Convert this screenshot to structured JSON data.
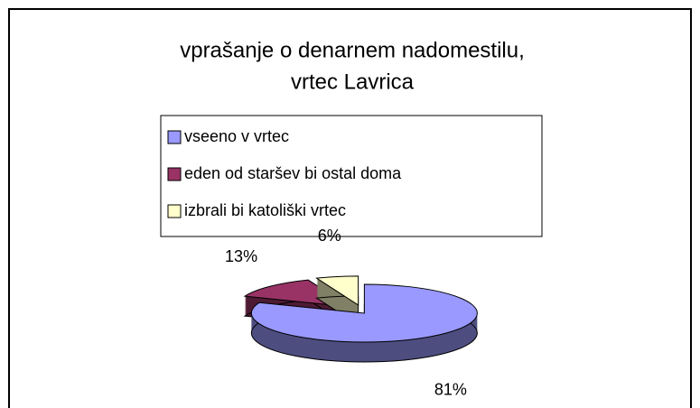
{
  "chart_data": {
    "type": "pie",
    "title": [
      "vprašanje o denarnem nadomestilu,",
      "vrtec Lavrica"
    ],
    "categories": [
      "vseeno v vrtec",
      "eden od staršev bi ostal doma",
      "izbrali bi katoliški vrtec"
    ],
    "values": [
      81,
      13,
      6
    ],
    "value_labels": [
      "81%",
      "13%",
      "6%"
    ],
    "colors": [
      "#9999ff",
      "#993366",
      "#ffffcc"
    ],
    "legend": "top"
  }
}
